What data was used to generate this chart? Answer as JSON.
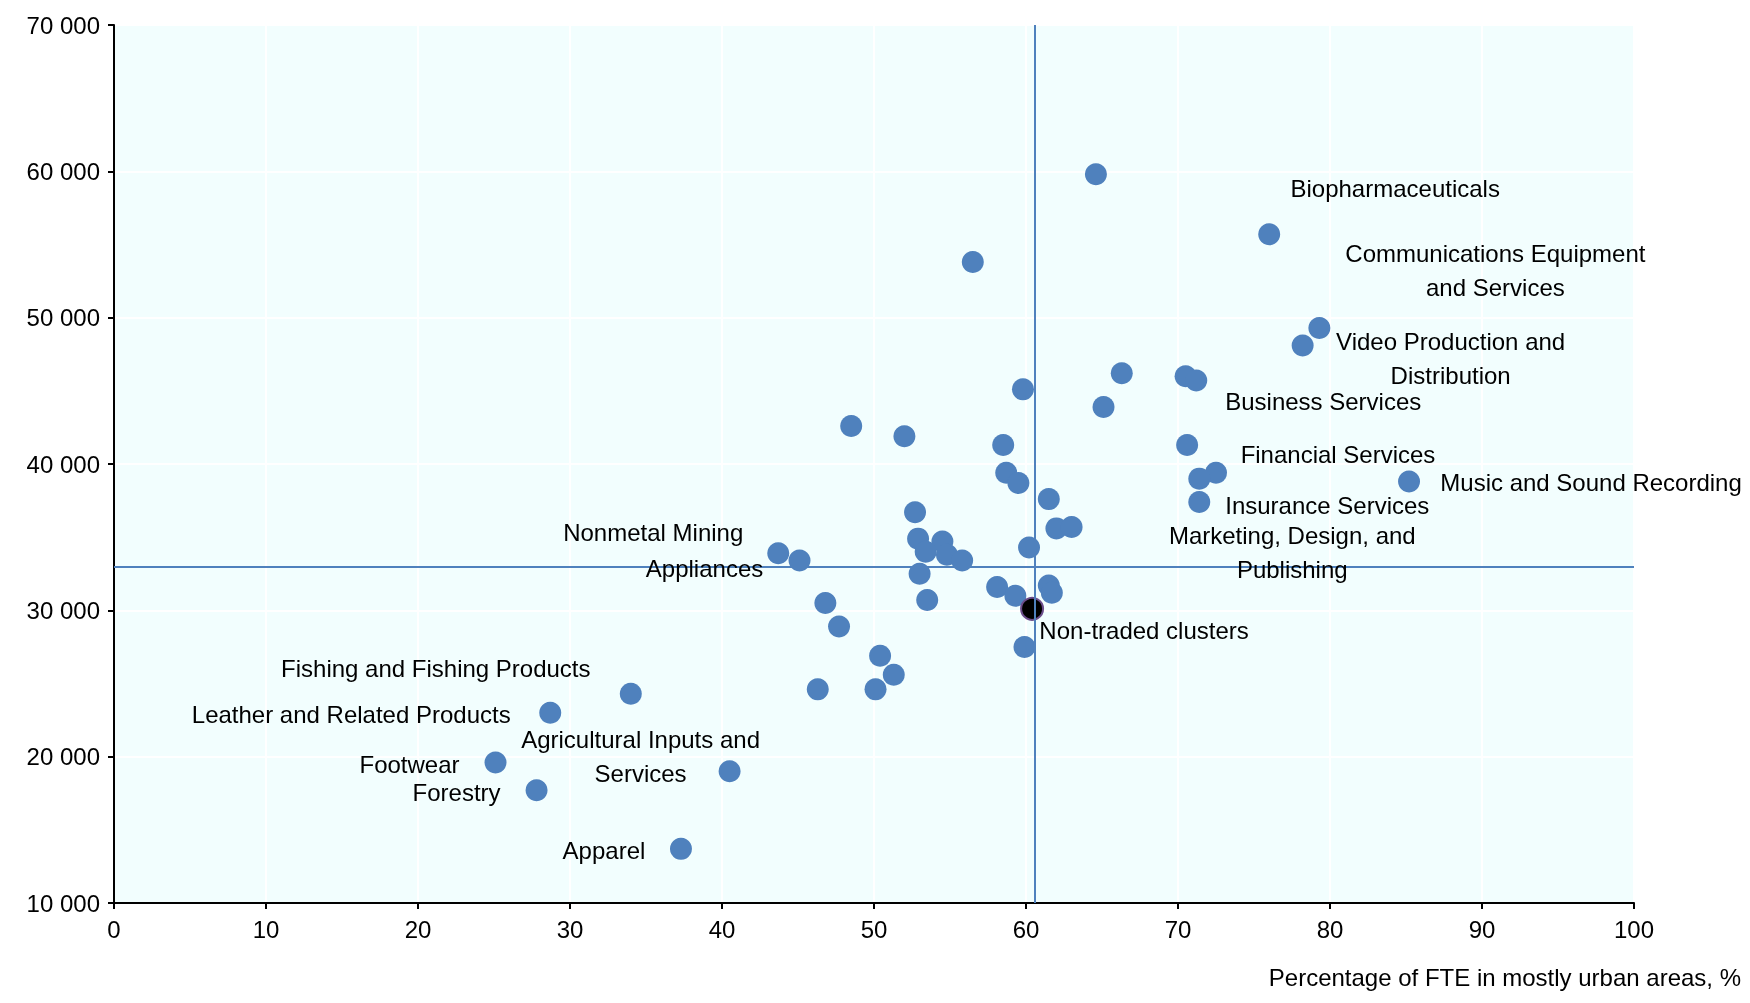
{
  "chart_data": {
    "type": "scatter",
    "xlabel": "Percentage of FTE in mostly urban areas, %",
    "xlim": [
      0,
      100
    ],
    "xticks": [
      0,
      10,
      20,
      30,
      40,
      50,
      60,
      70,
      80,
      90,
      100
    ],
    "ylim": [
      10000,
      70000
    ],
    "yticks": [
      {
        "value": 10000,
        "label": "10 000"
      },
      {
        "value": 20000,
        "label": "20 000"
      },
      {
        "value": 30000,
        "label": "30 000"
      },
      {
        "value": 40000,
        "label": "40 000"
      },
      {
        "value": 50000,
        "label": "50 000"
      },
      {
        "value": 60000,
        "label": "60 000"
      },
      {
        "value": 70000,
        "label": "70 000"
      }
    ],
    "grid": true,
    "marker": "circle",
    "series": [
      {
        "color": "#4f81bd",
        "x": [
          64.6,
          76.0,
          56.5,
          79.3,
          78.2,
          66.3,
          70.5,
          71.2,
          59.8,
          65.1,
          48.5,
          52.0,
          58.5,
          70.6,
          72.5,
          58.7,
          85.2,
          59.5,
          71.4,
          61.5,
          71.4,
          52.7,
          62.0,
          63.0,
          52.9,
          54.5,
          53.4,
          54.8,
          55.8,
          60.2,
          43.7,
          45.1,
          53.0,
          58.1,
          59.3,
          61.5,
          61.7,
          46.8,
          53.5,
          47.7,
          59.9,
          50.4,
          51.3,
          50.1,
          46.3,
          34.0,
          28.7,
          25.1,
          40.5,
          27.8,
          37.3
        ],
        "values": [
          59800,
          55700,
          53800,
          49300,
          48100,
          46200,
          46000,
          45700,
          45100,
          43900,
          42600,
          41900,
          41300,
          41300,
          39400,
          39400,
          38800,
          38700,
          39000,
          37600,
          37400,
          36700,
          35600,
          35700,
          34900,
          34700,
          34000,
          33800,
          33400,
          34300,
          33900,
          33400,
          32500,
          31600,
          31000,
          31700,
          31200,
          30500,
          30700,
          28900,
          27500,
          26900,
          25600,
          24600,
          24600,
          24300,
          23000,
          19600,
          19000,
          17700,
          13700
        ]
      },
      {
        "color": "#000000",
        "x": [
          60.4
        ],
        "values": [
          30100
        ]
      }
    ],
    "ref_lines": [
      {
        "axis": "x",
        "value": 60.6,
        "color": "#4f81bd",
        "line_style": "solid"
      },
      {
        "axis": "y",
        "value": 33000,
        "color": "#4f81bd",
        "line_style": "solid"
      }
    ],
    "annotations": [
      {
        "text": "Biopharmaceuticals",
        "x": 76.0,
        "y": 55700
      },
      {
        "text": "Communications Equipment\nand Services",
        "x": 79.3,
        "y": 49300
      },
      {
        "text": "Video Production and\nDistribution",
        "x": 78.2,
        "y": 48100
      },
      {
        "text": "Business Services",
        "x": 71.2,
        "y": 45700
      },
      {
        "text": "Financial Services",
        "x": 72.5,
        "y": 39400
      },
      {
        "text": "Music and Sound Recording",
        "x": 85.2,
        "y": 38800
      },
      {
        "text": "Insurance Services",
        "x": 71.4,
        "y": 37400
      },
      {
        "text": "Marketing, Design, and\nPublishing",
        "x": 71.4,
        "y": 39000
      },
      {
        "text": "Nonmetal Mining",
        "x": 43.7,
        "y": 33900
      },
      {
        "text": "Appliances",
        "x": 45.1,
        "y": 33400
      },
      {
        "text": "Non-traded clusters",
        "x": 60.4,
        "y": 30100
      },
      {
        "text": "Fishing and Fishing Products",
        "x": 34.0,
        "y": 24300
      },
      {
        "text": "Leather and Related Products",
        "x": 28.7,
        "y": 23000
      },
      {
        "text": "Footwear",
        "x": 25.1,
        "y": 19600
      },
      {
        "text": "Agricultural Inputs and\nServices",
        "x": 40.5,
        "y": 19000
      },
      {
        "text": "Forestry",
        "x": 27.8,
        "y": 17700
      },
      {
        "text": "Apparel",
        "x": 37.3,
        "y": 13700
      }
    ]
  }
}
